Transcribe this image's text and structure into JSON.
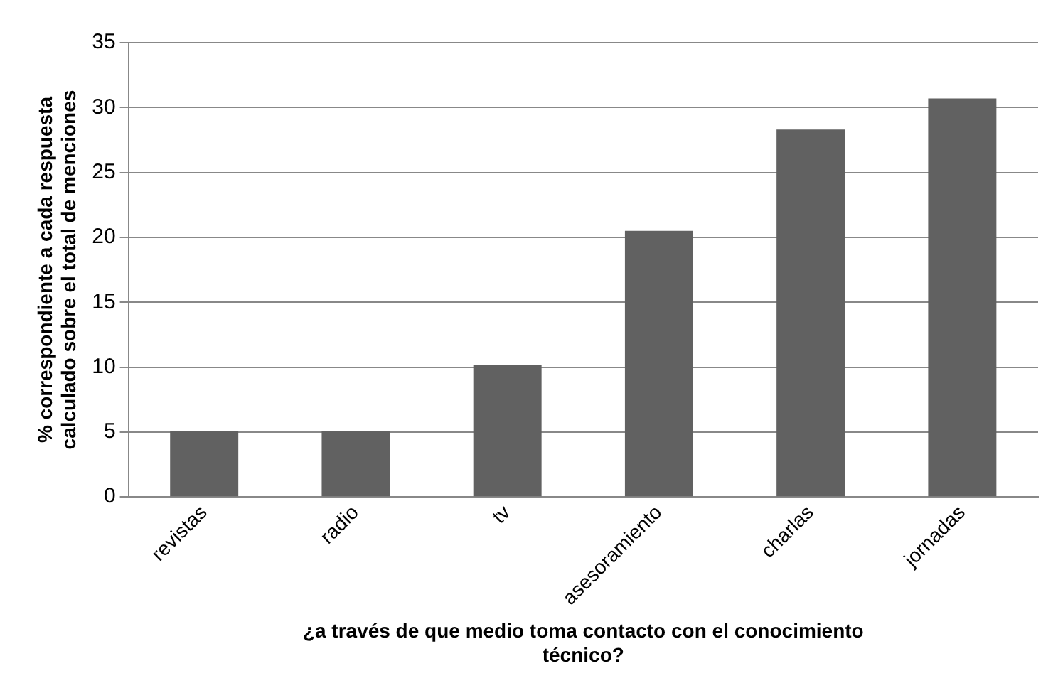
{
  "chart_data": {
    "type": "bar",
    "xlabel": "¿a través de que medio toma contacto con el conocimiento técnico?",
    "ylabel": "% correspondiente a cada respuesta calculado sobre el total de menciones",
    "categories": [
      "revistas",
      "radio",
      "tv",
      "asesoramiento",
      "charlas",
      "jornadas"
    ],
    "values": [
      5.1,
      5.1,
      10.2,
      20.5,
      28.3,
      30.7
    ],
    "color": "#616161",
    "ylim": [
      0,
      35
    ],
    "yticks": [
      0,
      5,
      10,
      15,
      20,
      25,
      30,
      35
    ],
    "grid": "y",
    "legend": false
  }
}
